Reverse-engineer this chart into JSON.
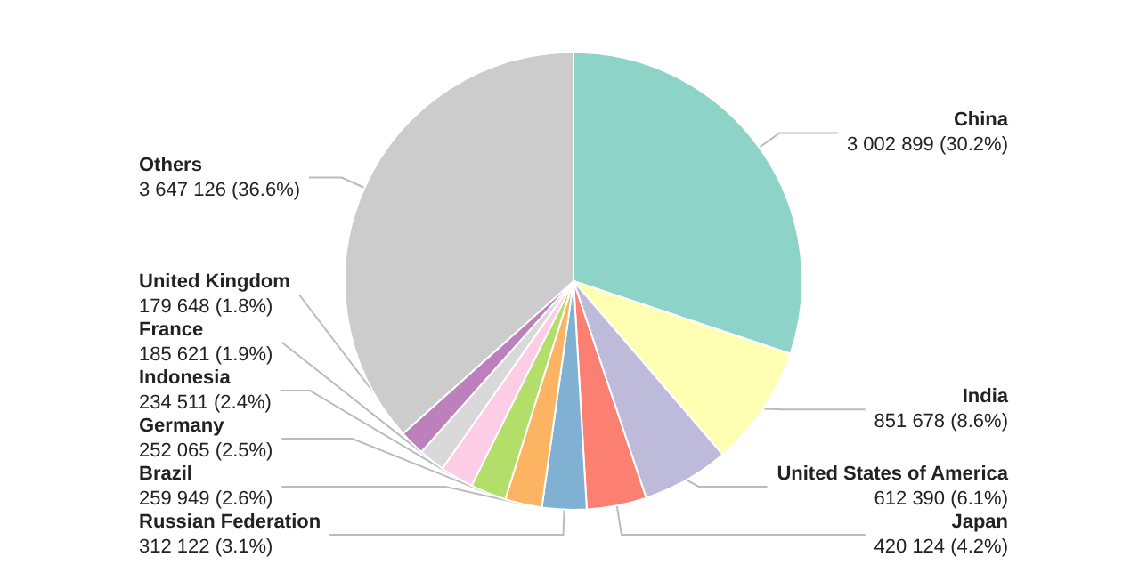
{
  "chart_data": {
    "type": "pie",
    "categories": [
      "China",
      "India",
      "United States of America",
      "Japan",
      "Russian Federation",
      "Brazil",
      "Germany",
      "Indonesia",
      "France",
      "United Kingdom",
      "Others"
    ],
    "values": [
      3002899,
      851678,
      612390,
      420124,
      312122,
      259949,
      252065,
      234511,
      185621,
      179648,
      3647126
    ],
    "value_labels": [
      "3 002 899 (30.2%)",
      "851 678 (8.6%)",
      "612 390 (6.1%)",
      "420 124 (4.2%)",
      "312 122 (3.1%)",
      "259 949 (2.6%)",
      "252 065 (2.5%)",
      "234 511 (2.4%)",
      "185 621 (1.9%)",
      "179 648 (1.8%)",
      "3 647 126 (36.6%)"
    ],
    "colors": [
      "#8dd3c7",
      "#ffffb3",
      "#bebada",
      "#fb8072",
      "#80b1d3",
      "#fdb462",
      "#b3de69",
      "#fccde5",
      "#d9d9d9",
      "#bc80bd",
      "#cccccc"
    ],
    "legend": false
  }
}
